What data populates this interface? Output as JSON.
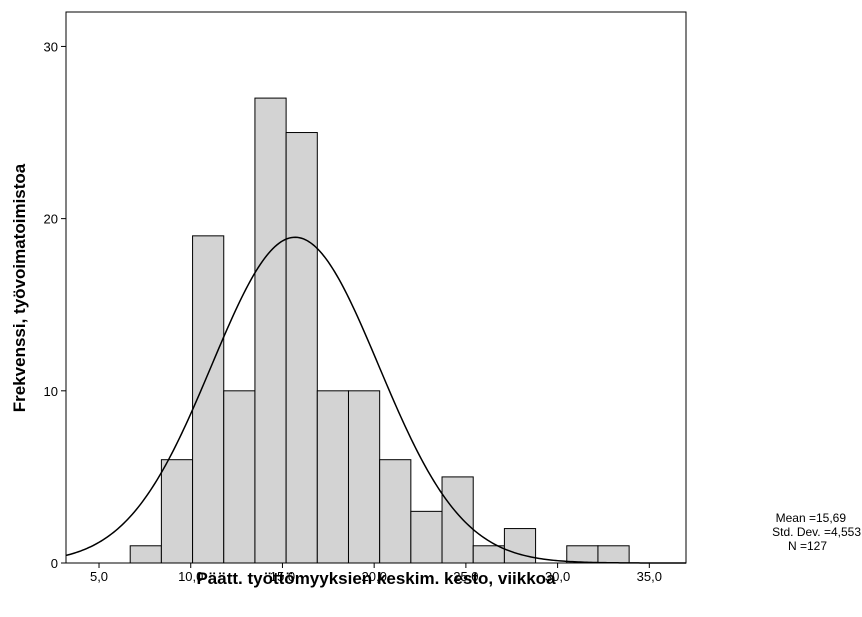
{
  "chart_data": {
    "type": "bar",
    "subtype": "histogram",
    "xlabel": "Päätt. työttömyyksien keskim. kesto, viikkoa",
    "ylabel": "Frekvenssi, työvoimatoimistoa",
    "xlim": [
      3.2,
      37.0
    ],
    "ylim": [
      0,
      32
    ],
    "x_ticks": [
      5,
      10,
      15,
      20,
      25,
      30,
      35
    ],
    "x_tick_labels": [
      "5,0",
      "10,0",
      "15,0",
      "20,0",
      "25,0",
      "30,0",
      "35,0"
    ],
    "y_ticks": [
      0,
      10,
      20,
      30
    ],
    "y_tick_labels": [
      "0",
      "10",
      "20",
      "30"
    ],
    "bins": [
      {
        "x0": 6.7,
        "x1": 8.4,
        "count": 1
      },
      {
        "x0": 8.4,
        "x1": 10.1,
        "count": 6
      },
      {
        "x0": 10.1,
        "x1": 11.8,
        "count": 19
      },
      {
        "x0": 11.8,
        "x1": 13.5,
        "count": 10
      },
      {
        "x0": 13.5,
        "x1": 15.2,
        "count": 27
      },
      {
        "x0": 15.2,
        "x1": 16.9,
        "count": 25
      },
      {
        "x0": 16.9,
        "x1": 18.6,
        "count": 10
      },
      {
        "x0": 18.6,
        "x1": 20.3,
        "count": 10
      },
      {
        "x0": 20.3,
        "x1": 22.0,
        "count": 6
      },
      {
        "x0": 22.0,
        "x1": 23.7,
        "count": 3
      },
      {
        "x0": 23.7,
        "x1": 25.4,
        "count": 5
      },
      {
        "x0": 25.4,
        "x1": 27.1,
        "count": 1
      },
      {
        "x0": 27.1,
        "x1": 28.8,
        "count": 2
      },
      {
        "x0": 28.8,
        "x1": 30.5,
        "count": 0
      },
      {
        "x0": 30.5,
        "x1": 32.2,
        "count": 1
      },
      {
        "x0": 32.2,
        "x1": 33.9,
        "count": 1
      }
    ],
    "normal_curve": {
      "mean": 15.69,
      "std_dev": 4.553,
      "n": 127,
      "bin_width": 1.7
    },
    "stats": {
      "mean": "Mean =15,69",
      "std_dev": "Std. Dev. =4,553",
      "n": "N =127"
    },
    "colors": {
      "bar_fill": "#d3d3d3",
      "bar_stroke": "#000000",
      "curve": "#000000"
    }
  }
}
